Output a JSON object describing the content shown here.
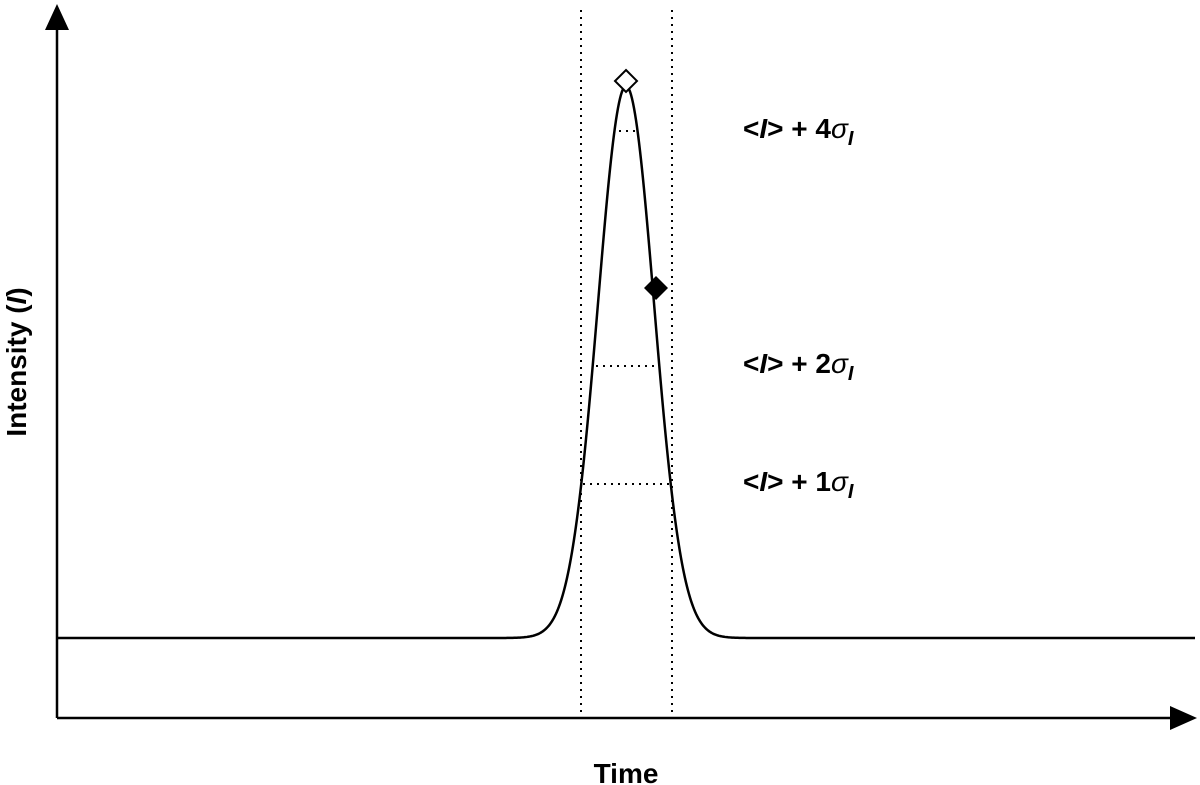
{
  "axes": {
    "y_label": {
      "before": "Intensity (",
      "var": "I",
      "after": ")"
    },
    "x_label": "Time"
  },
  "levels": [
    {
      "open": "<",
      "var": "I",
      "rest": "> + 4",
      "sigma": "σ",
      "sub": "I"
    },
    {
      "open": "<",
      "var": "I",
      "rest": "> + 2",
      "sigma": "σ",
      "sub": "I"
    },
    {
      "open": "<",
      "var": "I",
      "rest": "> + 1",
      "sigma": "σ",
      "sub": "I"
    }
  ]
}
